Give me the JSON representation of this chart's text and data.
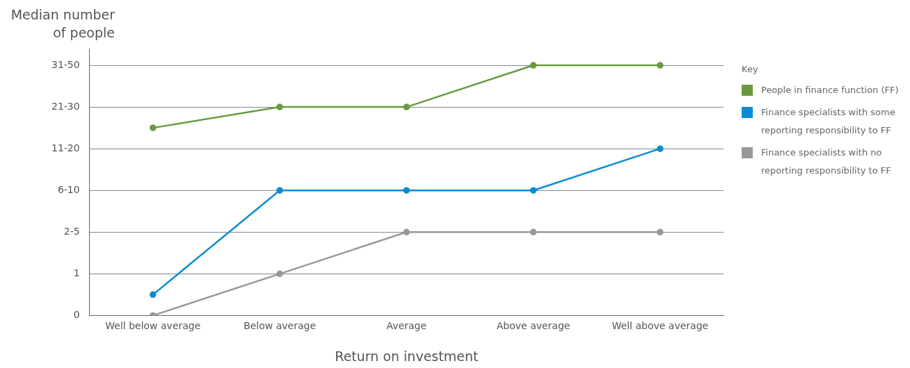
{
  "chart_data": {
    "type": "line",
    "ylabel": "Median number of people",
    "xlabel": "Return on investment",
    "legend_title": "Key",
    "legend": "right",
    "grid": "y",
    "marker": "circle",
    "categories": [
      "Well below average",
      "Below average",
      "Average",
      "Above average",
      "Well above average"
    ],
    "ylim": [
      0,
      6.4
    ],
    "yticks": [
      {
        "value": 0,
        "label": "0"
      },
      {
        "value": 1,
        "label": "1"
      },
      {
        "value": 2,
        "label": "2-5"
      },
      {
        "value": 3,
        "label": "6-10"
      },
      {
        "value": 4,
        "label": "11-20"
      },
      {
        "value": 5,
        "label": "21-30"
      },
      {
        "value": 6,
        "label": "31-50"
      }
    ],
    "series": [
      {
        "name": "People in finance function (FF)",
        "color": "#6a9a3e",
        "values": [
          4.5,
          5,
          5,
          6,
          6
        ]
      },
      {
        "name": "Finance specialists with some reporting responsibility to FF",
        "color": "#0b8bd3",
        "values": [
          0.5,
          3,
          3,
          3,
          4
        ]
      },
      {
        "name": "Finance specialists with no reporting responsibility to FF",
        "color": "#999999",
        "values": [
          0,
          1,
          2,
          2,
          2
        ]
      }
    ]
  }
}
